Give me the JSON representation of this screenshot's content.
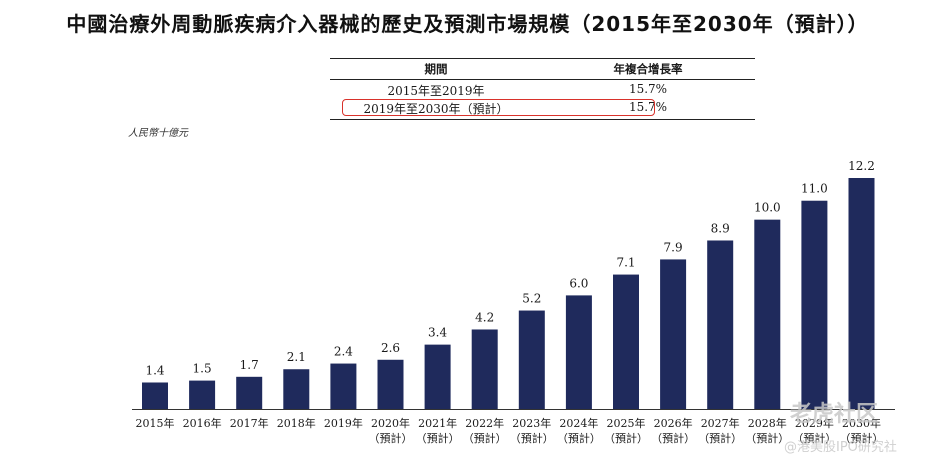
{
  "title": "中國治療外周動脈疾病介入器械的歷史及預測市場規模（2015年至2030年（預計））",
  "cagr_table": {
    "headers": [
      "期間",
      "年複合增長率"
    ],
    "rows": [
      {
        "period": "2015年至2019年",
        "cagr": "15.7%"
      },
      {
        "period": "2019年至2030年（預計）",
        "cagr": "15.7%"
      }
    ]
  },
  "unit_label": "人民幣十億元",
  "chart_data": {
    "type": "bar",
    "categories": [
      "2015年",
      "2016年",
      "2017年",
      "2018年",
      "2019年",
      "2020年",
      "2021年",
      "2022年",
      "2023年",
      "2024年",
      "2025年",
      "2026年",
      "2027年",
      "2028年",
      "2029年",
      "2030年"
    ],
    "category_notes": [
      "",
      "",
      "",
      "",
      "",
      "（預計）",
      "（預計）",
      "（預計）",
      "（預計）",
      "（預計）",
      "（預計）",
      "（預計）",
      "（預計）",
      "（預計）",
      "（預計）",
      "（預計）"
    ],
    "values": [
      1.4,
      1.5,
      1.7,
      2.1,
      2.4,
      2.6,
      3.4,
      4.2,
      5.2,
      6.0,
      7.1,
      7.9,
      8.9,
      10.0,
      11.0,
      12.2
    ],
    "value_labels": [
      "1.4",
      "1.5",
      "1.7",
      "2.1",
      "2.4",
      "2.6",
      "3.4",
      "4.2",
      "5.2",
      "6.0",
      "7.1",
      "7.9",
      "8.9",
      "10.0",
      "11.0",
      "12.2"
    ],
    "ylabel": "人民幣十億元",
    "ylim": [
      0,
      12.2
    ],
    "bar_color": "#1f2a5c",
    "grid": false,
    "legend": "none"
  },
  "watermark": {
    "text1": "老虎社区",
    "text2": "@港美股IPO研究社"
  }
}
